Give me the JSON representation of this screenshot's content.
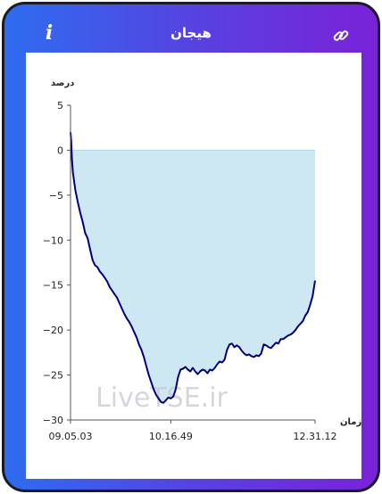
{
  "header": {
    "title": "هیجان",
    "info_icon": "info-icon",
    "link_icon": "link-icon"
  },
  "watermark": "LiveTSE.ir",
  "colors": {
    "line": "#00007a",
    "fill": "#cde8f3",
    "accent_left": "#2e6cf0",
    "accent_right": "#7a22d8"
  },
  "chart_data": {
    "type": "area",
    "ylabel": "درصد",
    "xlabel": "زمان",
    "ylim": [
      -30,
      5
    ],
    "yticks": [
      5,
      0,
      -5,
      -10,
      -15,
      -20,
      -25,
      -30
    ],
    "xlim": [
      0,
      100
    ],
    "xticks": [
      {
        "pos": 0,
        "label": "09.05.03"
      },
      {
        "pos": 41,
        "label": "10.16.49"
      },
      {
        "pos": 100,
        "label": "12.31.12"
      }
    ],
    "baseline": 0,
    "series": [
      {
        "points": [
          [
            0,
            2
          ],
          [
            0.3,
            1
          ],
          [
            0.6,
            -1
          ],
          [
            1,
            -2.5
          ],
          [
            1.5,
            -3.5
          ],
          [
            2,
            -4.5
          ],
          [
            3,
            -5.8
          ],
          [
            4,
            -7
          ],
          [
            5,
            -8
          ],
          [
            6,
            -9.2
          ],
          [
            7,
            -9.8
          ],
          [
            8,
            -11
          ],
          [
            9,
            -12.2
          ],
          [
            10,
            -12.8
          ],
          [
            11,
            -13
          ],
          [
            12,
            -13.5
          ],
          [
            13,
            -13.8
          ],
          [
            14,
            -14.2
          ],
          [
            15,
            -14.6
          ],
          [
            16,
            -15.2
          ],
          [
            17,
            -15.6
          ],
          [
            18,
            -16
          ],
          [
            19,
            -16.4
          ],
          [
            20,
            -17
          ],
          [
            21,
            -17.6
          ],
          [
            22,
            -18.2
          ],
          [
            23,
            -18.7
          ],
          [
            24,
            -19.1
          ],
          [
            25,
            -19.6
          ],
          [
            26,
            -20.2
          ],
          [
            27,
            -20.8
          ],
          [
            28,
            -21.6
          ],
          [
            29,
            -22.2
          ],
          [
            30,
            -23
          ],
          [
            31,
            -24
          ],
          [
            32,
            -25
          ],
          [
            33,
            -25.8
          ],
          [
            34,
            -26.6
          ],
          [
            35,
            -27.2
          ],
          [
            36,
            -27.6
          ],
          [
            37,
            -28
          ],
          [
            38,
            -28.1
          ],
          [
            39,
            -27.8
          ],
          [
            40,
            -27.5
          ],
          [
            41,
            -27.6
          ],
          [
            42,
            -27.4
          ],
          [
            43,
            -26.6
          ],
          [
            44,
            -25.2
          ],
          [
            45,
            -24.4
          ],
          [
            46,
            -24.3
          ],
          [
            47,
            -24.1
          ],
          [
            48,
            -24.4
          ],
          [
            49,
            -24.6
          ],
          [
            50,
            -24.2
          ],
          [
            51,
            -24.6
          ],
          [
            52,
            -24.9
          ],
          [
            53,
            -24.6
          ],
          [
            54,
            -24.4
          ],
          [
            55,
            -24.5
          ],
          [
            56,
            -24.8
          ],
          [
            57,
            -24.4
          ],
          [
            58,
            -24.5
          ],
          [
            59,
            -24.2
          ],
          [
            60,
            -23.8
          ],
          [
            61,
            -23.5
          ],
          [
            62,
            -23.6
          ],
          [
            63,
            -23.3
          ],
          [
            64,
            -22.2
          ],
          [
            65,
            -21.6
          ],
          [
            66,
            -21.5
          ],
          [
            67,
            -21.9
          ],
          [
            68,
            -21.7
          ],
          [
            69,
            -21.9
          ],
          [
            70,
            -22.3
          ],
          [
            71,
            -22.6
          ],
          [
            72,
            -22.8
          ],
          [
            73,
            -22.7
          ],
          [
            74,
            -22.9
          ],
          [
            75,
            -23
          ],
          [
            76,
            -22.8
          ],
          [
            77,
            -22.9
          ],
          [
            78,
            -22.6
          ],
          [
            79,
            -21.6
          ],
          [
            80,
            -21.7
          ],
          [
            81,
            -21.9
          ],
          [
            82,
            -22
          ],
          [
            83,
            -21.7
          ],
          [
            84,
            -21.4
          ],
          [
            85,
            -21.5
          ],
          [
            86,
            -21
          ],
          [
            87,
            -21
          ],
          [
            88,
            -20.8
          ],
          [
            89,
            -20.6
          ],
          [
            90,
            -20.5
          ],
          [
            91,
            -20.3
          ],
          [
            92,
            -20
          ],
          [
            93,
            -19.6
          ],
          [
            94,
            -19.3
          ],
          [
            95,
            -19
          ],
          [
            96,
            -18.4
          ],
          [
            97,
            -18
          ],
          [
            98,
            -17.2
          ],
          [
            99,
            -16.2
          ],
          [
            100,
            -14.5
          ]
        ]
      }
    ]
  }
}
